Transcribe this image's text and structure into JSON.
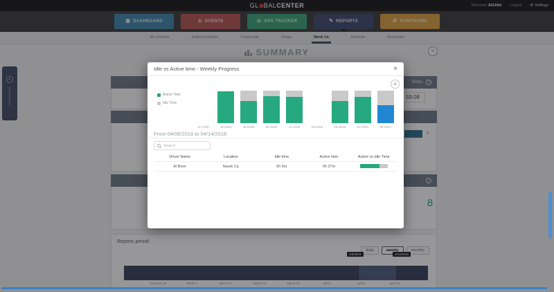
{
  "topbar": {
    "logo": {
      "prefix": "GL",
      "mid": "BAL",
      "suffix": "CENTER"
    },
    "welcome": "Welcome",
    "username": "AlGilitti",
    "logout": "Logout",
    "settings": "Settings"
  },
  "nav": {
    "items": [
      {
        "label": "DASHBOARD",
        "icon": "dashboard-icon",
        "color": "#3e86aa",
        "active": false
      },
      {
        "label": "EVENTS",
        "icon": "events-icon",
        "color": "#b85450",
        "active": false
      },
      {
        "label": "GPS TRACKER",
        "icon": "gps-tracker-icon",
        "color": "#3ba479",
        "active": false
      },
      {
        "label": "REPORTS",
        "icon": "reports-icon",
        "color": "#3c4a6e",
        "active": true
      },
      {
        "label": "CONFIGURE",
        "icon": "configure-icon",
        "color": "#dca03f",
        "active": false
      }
    ]
  },
  "subnav": {
    "tabs": [
      "All Locations",
      "Deferral Intention",
      "Condensate",
      "Struga",
      "Narek Ca",
      "Romania",
      "Yerevanian"
    ],
    "selected_index": 4
  },
  "page": {
    "title": "SUMMARY"
  },
  "side_tab": {
    "label": "REPORTS"
  },
  "background": {
    "rides_card": {
      "header": "Rides",
      "value": "59:08"
    },
    "mid_card": {
      "bar_value": "0"
    },
    "stat_card": {
      "value": "8"
    },
    "reports_period": {
      "title": "Reports period",
      "buttons": [
        "daily",
        "weekly",
        "monthly"
      ],
      "selected_button": "weekly",
      "tooltips": [
        "4/8/2018",
        "4/14/2018"
      ],
      "axis_labels": [
        "February 28",
        "March 4",
        "March 11",
        "March 18",
        "March 25",
        "April 1",
        "April 8",
        "April 15"
      ]
    }
  },
  "modal": {
    "title": "Idle vs Active time - Weekly Progress",
    "close_label": "×",
    "chart_data": {
      "type": "bar",
      "stacked": true,
      "unit": "percent",
      "categories": [
        "11-17/02",
        "18-24/02",
        "25-03/03",
        "04-10/03",
        "11-17/03",
        "18-24/03",
        "25-31/03",
        "01-07/04",
        "08-14/04"
      ],
      "series": [
        {
          "name": "Active Time",
          "color": "#26a97f",
          "values": [
            0,
            97,
            69,
            84,
            82,
            0,
            69,
            80,
            55
          ]
        },
        {
          "name": "Idle Time",
          "color": "#c9c9c9",
          "values": [
            0,
            0,
            31,
            16,
            18,
            0,
            31,
            20,
            45
          ]
        }
      ],
      "highlight": {
        "index": 8,
        "color": "#2287d3",
        "reason": "selected week 08-14/04"
      },
      "legend_position": "left",
      "title": "Idle vs Active time - Weekly Progress"
    },
    "date_range": "From 04/08/2018 to 04/14/2018",
    "search": {
      "placeholder": "Search"
    },
    "table": {
      "headers": [
        "Driver Name",
        "Location",
        "Idle time",
        "Active time",
        "Active vs Idle Time"
      ],
      "rows": [
        {
          "driver_name": "Al Biver",
          "location": "Narek Ca",
          "idle_time": "0h 5m",
          "active_time": "0h 37m",
          "active_pct": 70
        }
      ]
    }
  },
  "colors": {
    "active": "#26a97f",
    "idle": "#c9c9c9",
    "highlight_bar": "#2287d3",
    "idle_text": "#e09a57",
    "active_text": "#26a97f",
    "card_header": "#6d7987",
    "timeline": "#37415a",
    "timeline_highlight": "#4c5c7c",
    "scrollbar": "#4a90d9"
  }
}
